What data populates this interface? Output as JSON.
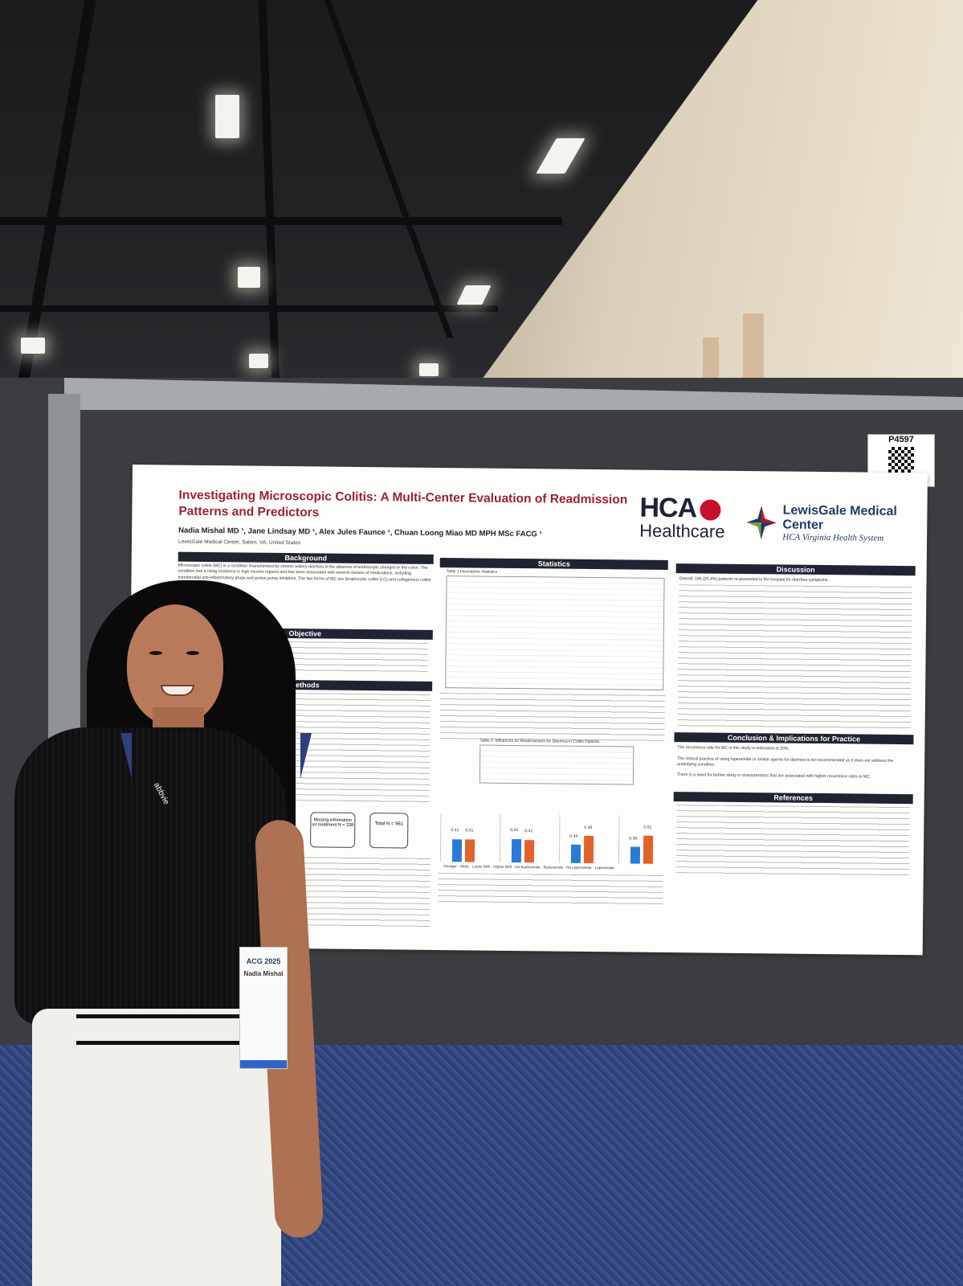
{
  "poster": {
    "title": "Investigating Microscopic Colitis: A Multi-Center Evaluation of Readmission Patterns and Predictors",
    "authors": "Nadia Mishal MD ¹, Jane Lindsay MD ¹, Alex Jules Faunce ¹, Chuan Loong Miao MD MPH MSc FACG ¹",
    "affiliation": "LewisGale Medical Center, Salem, VA, United States",
    "logo_hca_main": "HCA",
    "logo_hca_sub": "Healthcare",
    "logo_lg_name": "LewisGale Medical Center",
    "logo_lg_sub": "HCA Virginia Health System",
    "sections": {
      "background": "Background",
      "objective": "Objective",
      "methods": "Methods",
      "statistics": "Statistics",
      "discussion": "Discussion",
      "conclusion": "Conclusion & Implications for Practice",
      "references": "References"
    },
    "background_text": "Microscopic colitis (MC) is a condition characterized by chronic watery diarrhea in the absence of endoscopic changes in the colon. The condition has a rising incidence in high income regions and has been associated with several classes of medications, including nonsteroidal anti-inflammatory drugs and proton pump inhibitors. The two forms of MC are lymphocytic colitis (LC) and collagenous colitis (CC).",
    "methods_box": "Missing information on treatment N = 338",
    "methods_total": "Total N = 961",
    "discussion_text": "Overall, 196 (20.4%) patients re-presented to the hospital for diarrhea symptoms.",
    "conclusion_text": "The recurrence rate for MC in this study is estimated at 20%.",
    "conclusion_text2": "The clinical practice of using loperamide or similar agents for diarrhea is not recommended as it does not address the underlying condition.",
    "conclusion_text3": "There is a need for further study in characteristics that are associated with higher recurrence rates in MC.",
    "table1_title": "Table 1 Descriptive Statistics",
    "table2_title": "Table 2: Influences on Readmissions for Diarrhea in Colitis Patients",
    "chart_labels": [
      "0.41",
      "0.41",
      "0.42",
      "0.41",
      "0.34",
      "0.49",
      "0.30",
      "0.51"
    ],
    "legend": [
      "Younger",
      "Older",
      "Lower BMI",
      "Higher BMI",
      "No Budesonide",
      "Budesonide",
      "No Loperamide",
      "Loperamide"
    ]
  },
  "board_number": "P4597",
  "badge": {
    "event": "ACG 2025",
    "name": "Nadia Mishal"
  },
  "lanyard_text": "abbvie",
  "colors": {
    "title_red": "#9b2233",
    "header_navy": "#1f2433",
    "bar_blue": "#2a7bd6",
    "bar_orange": "#e3622a"
  }
}
